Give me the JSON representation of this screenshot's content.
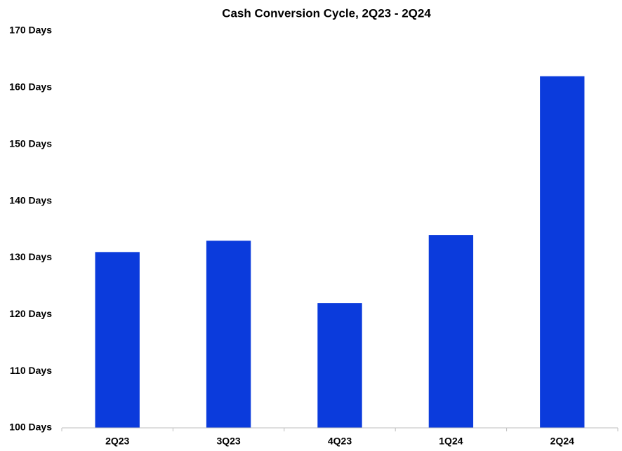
{
  "chart_data": {
    "type": "bar",
    "title": "Cash Conversion Cycle, 2Q23 - 2Q24",
    "categories": [
      "2Q23",
      "3Q23",
      "4Q23",
      "1Q24",
      "2Q24"
    ],
    "values": [
      131,
      133,
      122,
      134,
      162
    ],
    "color": "#0b3bdc",
    "ylim": [
      100,
      170
    ],
    "yticks": [
      {
        "value": 100,
        "label": "100 Days"
      },
      {
        "value": 110,
        "label": "110 Days"
      },
      {
        "value": 120,
        "label": "120 Days"
      },
      {
        "value": 130,
        "label": "130 Days"
      },
      {
        "value": 140,
        "label": "140 Days"
      },
      {
        "value": 150,
        "label": "150 Days"
      },
      {
        "value": 160,
        "label": "160 Days"
      },
      {
        "value": 170,
        "label": "170 Days"
      }
    ],
    "grid": false
  }
}
